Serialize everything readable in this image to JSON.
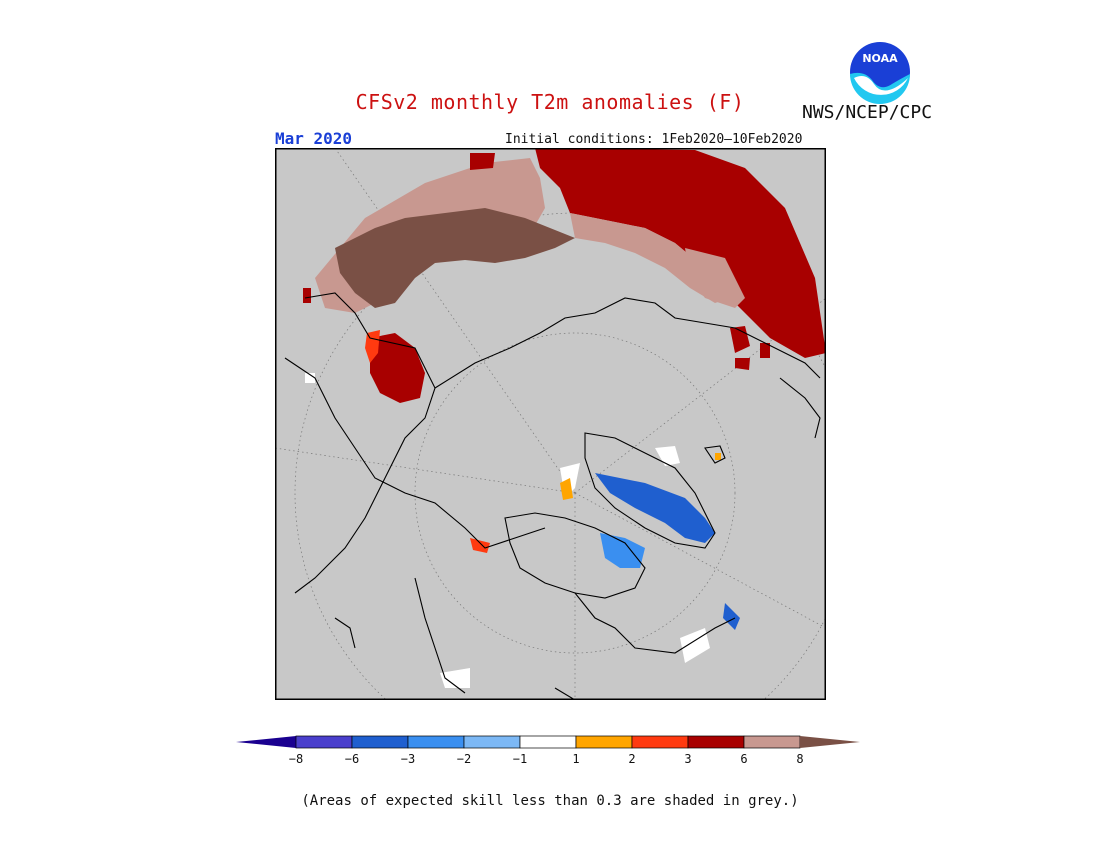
{
  "header": {
    "title": "CFSv2 monthly T2m anomalies (F)",
    "month": "Mar 2020",
    "initial_conditions": "Initial conditions: 1Feb2020–10Feb2020",
    "agency": "NWS/NCEP/CPC",
    "logo_text": "NOAA"
  },
  "map": {
    "projection": "north-polar-stereographic",
    "background_color": "#c8c8c8",
    "coastline_color": "#000000",
    "graticule": "dotted"
  },
  "colorbar": {
    "labels": [
      "−8",
      "−6",
      "−3",
      "−2",
      "−1",
      "1",
      "2",
      "3",
      "6",
      "8"
    ],
    "colors": [
      "#1a0090",
      "#4a3fcc",
      "#1f5fcf",
      "#3a8ff0",
      "#7cb8f5",
      "#ffffff",
      "#ffa500",
      "#ff3a10",
      "#a80000",
      "#c89890",
      "#7a5045"
    ]
  },
  "footnote": "(Areas of expected skill less than 0.3 are shaded in grey.)",
  "colors": {
    "title": "#cc1111",
    "month": "#1a3fd6"
  }
}
